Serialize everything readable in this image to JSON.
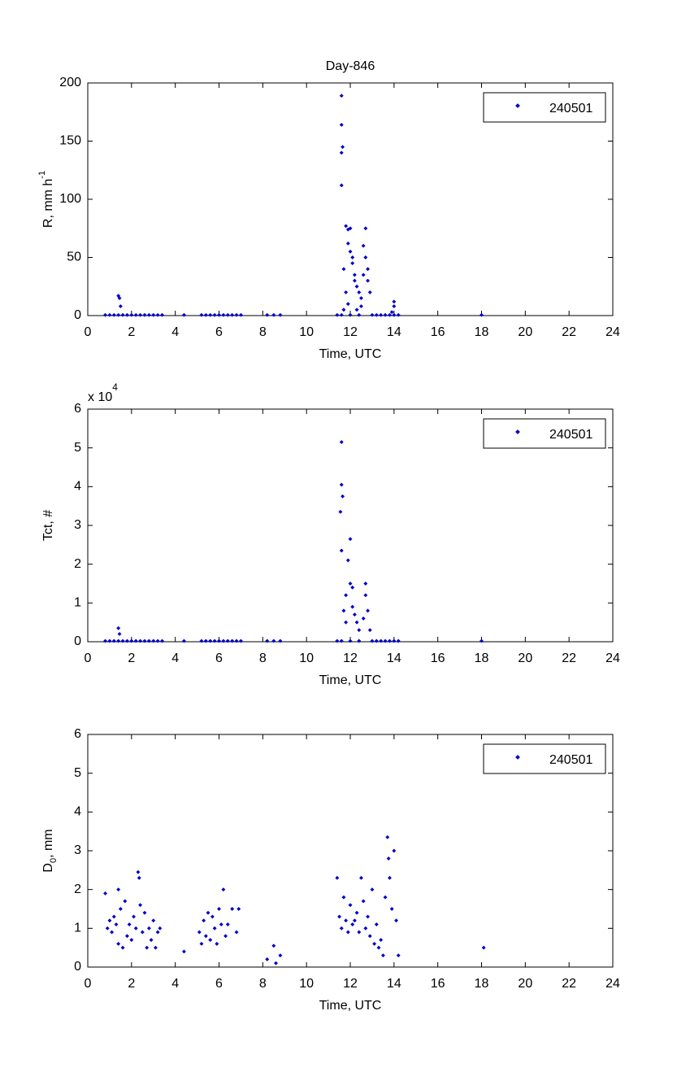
{
  "chart_data": [
    {
      "type": "scatter",
      "title": "Day-846",
      "xlabel": "Time, UTC",
      "ylabel": "R, mm h",
      "ylabel_sup": "-1",
      "xlim": [
        0,
        24
      ],
      "xticks": [
        0,
        2,
        4,
        6,
        8,
        10,
        12,
        14,
        16,
        18,
        20,
        22,
        24
      ],
      "ylim": [
        0,
        200
      ],
      "yticks": [
        0,
        50,
        100,
        150,
        200
      ],
      "legend": "upper right",
      "x": [
        0.8,
        1.0,
        1.2,
        1.4,
        1.6,
        1.8,
        2.0,
        2.2,
        2.4,
        2.6,
        2.8,
        3.0,
        3.2,
        3.4,
        4.4,
        5.2,
        5.4,
        5.6,
        5.8,
        6.0,
        6.2,
        6.4,
        6.6,
        6.8,
        7.0,
        8.2,
        8.5,
        8.8,
        11.4,
        11.6,
        12.0,
        12.4,
        13.0,
        13.2,
        13.4,
        13.6,
        13.8,
        14.0,
        14.2,
        18.0,
        1.4,
        1.45,
        1.5,
        11.6,
        11.6,
        11.65,
        11.6,
        11.6,
        11.8,
        11.9,
        12.0,
        11.9,
        12.0,
        12.1,
        12.1,
        12.2,
        12.2,
        11.7,
        11.8,
        11.9,
        12.3,
        12.4,
        12.5,
        12.6,
        12.7,
        12.7,
        12.8,
        12.8,
        12.6,
        12.9,
        12.5,
        12.3,
        11.7,
        14.0,
        14.0,
        13.9
      ],
      "series": [
        {
          "name": "240501",
          "color": "#0000cc",
          "values": [
            0.5,
            0.5,
            0.5,
            0.5,
            0.5,
            0.5,
            0.5,
            0.5,
            0.5,
            0.5,
            0.5,
            0.5,
            0.5,
            0.5,
            0.5,
            0.5,
            0.5,
            0.5,
            0.5,
            0.5,
            0.5,
            0.5,
            0.5,
            0.5,
            0.5,
            0.5,
            0.5,
            0.5,
            0.5,
            0.5,
            0.5,
            0.5,
            0.5,
            0.5,
            0.5,
            0.5,
            0.5,
            0.5,
            0.5,
            0.5,
            17,
            15,
            8,
            189,
            164,
            145,
            140,
            112,
            77,
            74,
            75,
            62,
            55,
            45,
            50,
            35,
            30,
            40,
            20,
            10,
            25,
            20,
            15,
            60,
            75,
            50,
            40,
            30,
            35,
            20,
            8,
            5,
            5,
            12,
            8,
            3
          ]
        }
      ]
    },
    {
      "type": "scatter",
      "xlabel": "Time, UTC",
      "ylabel": "Tct, #",
      "y_multiplier": "x 10",
      "y_multiplier_exp": "4",
      "xlim": [
        0,
        24
      ],
      "xticks": [
        0,
        2,
        4,
        6,
        8,
        10,
        12,
        14,
        16,
        18,
        20,
        22,
        24
      ],
      "ylim": [
        0,
        6
      ],
      "yticks": [
        0,
        1,
        2,
        3,
        4,
        5,
        6
      ],
      "legend": "upper right",
      "x": [
        0.8,
        1.0,
        1.2,
        1.4,
        1.6,
        1.8,
        2.0,
        2.2,
        2.4,
        2.6,
        2.8,
        3.0,
        3.2,
        3.4,
        4.4,
        5.2,
        5.4,
        5.6,
        5.8,
        6.0,
        6.2,
        6.4,
        6.6,
        6.8,
        7.0,
        8.2,
        8.5,
        8.8,
        11.4,
        11.6,
        12.0,
        12.4,
        13.0,
        13.2,
        13.4,
        13.6,
        13.8,
        14.0,
        14.2,
        18.0,
        1.4,
        1.45,
        11.6,
        11.6,
        11.65,
        11.55,
        11.6,
        12.0,
        11.9,
        12.0,
        12.1,
        11.8,
        12.1,
        12.2,
        12.3,
        12.4,
        12.7,
        12.7,
        12.8,
        12.6,
        11.7,
        11.8,
        12.9
      ],
      "series": [
        {
          "name": "240501",
          "color": "#0000cc",
          "values": [
            0.02,
            0.02,
            0.02,
            0.02,
            0.02,
            0.02,
            0.02,
            0.02,
            0.02,
            0.02,
            0.02,
            0.02,
            0.02,
            0.02,
            0.02,
            0.02,
            0.02,
            0.02,
            0.02,
            0.02,
            0.02,
            0.02,
            0.02,
            0.02,
            0.02,
            0.02,
            0.02,
            0.02,
            0.02,
            0.02,
            0.02,
            0.02,
            0.02,
            0.02,
            0.02,
            0.02,
            0.02,
            0.02,
            0.02,
            0.02,
            0.35,
            0.2,
            5.15,
            4.05,
            3.75,
            3.35,
            2.35,
            2.65,
            2.1,
            1.5,
            1.4,
            1.2,
            0.9,
            0.7,
            0.5,
            0.3,
            1.5,
            1.2,
            0.8,
            0.6,
            0.8,
            0.5,
            0.3
          ]
        }
      ]
    },
    {
      "type": "scatter",
      "xlabel": "Time, UTC",
      "ylabel": "D",
      "ylabel_sub": "0",
      "ylabel_rest": ", mm",
      "xlim": [
        0,
        24
      ],
      "xticks": [
        0,
        2,
        4,
        6,
        8,
        10,
        12,
        14,
        16,
        18,
        20,
        22,
        24
      ],
      "ylim": [
        0,
        6
      ],
      "yticks": [
        0,
        1,
        2,
        3,
        4,
        5,
        6
      ],
      "legend": "upper right",
      "x": [
        0.8,
        0.9,
        1.0,
        1.1,
        1.2,
        1.3,
        1.4,
        1.4,
        1.5,
        1.6,
        1.7,
        1.8,
        1.9,
        2.0,
        2.1,
        2.2,
        2.3,
        2.35,
        2.4,
        2.5,
        2.6,
        2.7,
        2.8,
        2.9,
        3.0,
        3.1,
        3.2,
        3.3,
        4.4,
        5.1,
        5.2,
        5.3,
        5.4,
        5.5,
        5.6,
        5.7,
        5.8,
        5.9,
        6.0,
        6.1,
        6.2,
        6.3,
        6.4,
        6.6,
        6.8,
        6.9,
        8.2,
        8.5,
        8.6,
        8.8,
        11.4,
        11.5,
        11.6,
        11.7,
        11.8,
        11.9,
        12.0,
        12.1,
        12.2,
        12.3,
        12.4,
        12.5,
        12.6,
        12.7,
        12.8,
        12.9,
        13.0,
        13.1,
        13.2,
        13.3,
        13.4,
        13.5,
        13.6,
        13.7,
        13.75,
        13.8,
        13.9,
        14.0,
        14.1,
        14.2,
        18.1
      ],
      "series": [
        {
          "name": "240501",
          "color": "#0000cc",
          "values": [
            1.9,
            1.0,
            1.2,
            0.9,
            1.3,
            1.1,
            2.0,
            0.6,
            1.5,
            0.5,
            1.7,
            0.8,
            1.1,
            0.7,
            1.3,
            1.0,
            2.45,
            2.3,
            1.6,
            0.9,
            1.4,
            0.5,
            1.0,
            0.7,
            1.2,
            0.5,
            0.9,
            1.0,
            0.4,
            0.9,
            0.6,
            1.2,
            0.8,
            1.4,
            0.7,
            1.3,
            1.0,
            0.6,
            1.5,
            1.1,
            2.0,
            0.8,
            1.1,
            1.5,
            0.9,
            1.5,
            0.2,
            0.55,
            0.1,
            0.3,
            2.3,
            1.3,
            1.0,
            1.8,
            1.2,
            0.9,
            1.6,
            1.1,
            1.2,
            1.4,
            0.9,
            2.3,
            1.7,
            1.0,
            1.3,
            0.8,
            2.0,
            0.6,
            1.1,
            0.5,
            0.7,
            0.3,
            1.8,
            3.35,
            2.8,
            2.3,
            1.5,
            3.0,
            1.2,
            0.3,
            0.5
          ]
        }
      ]
    }
  ]
}
